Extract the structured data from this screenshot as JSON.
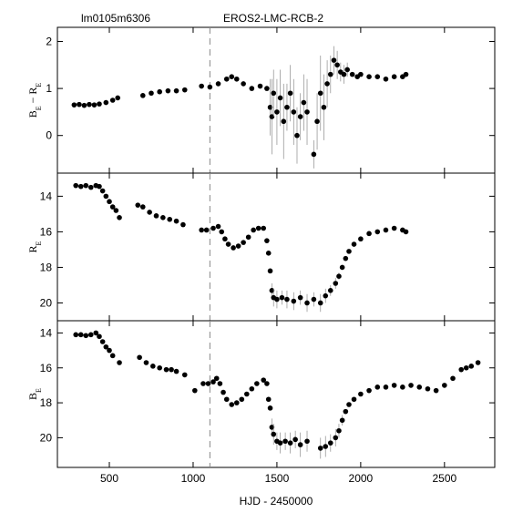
{
  "chart_data": [
    {
      "type": "scatter",
      "subtitle": "lm0105m6306",
      "title": "EROS2-LMC-RCB-2",
      "y_label": [
        {
          "text": "B",
          "sub": false
        },
        {
          "text": "E",
          "sub": true
        },
        {
          "text": " − ",
          "sub": false
        },
        {
          "text": "R",
          "sub": false
        },
        {
          "text": "E",
          "sub": true
        }
      ],
      "xlim": [
        190,
        2800
      ],
      "ylim": [
        -0.8,
        2.3
      ],
      "xticks": [
        500,
        1000,
        1500,
        2000,
        2500
      ],
      "yticks": [
        0,
        1,
        2
      ],
      "reference_x": 1100,
      "color": "#000000",
      "error_color": "#999999",
      "x": [
        290,
        320,
        350,
        380,
        410,
        440,
        480,
        520,
        550,
        700,
        750,
        800,
        850,
        900,
        950,
        1050,
        1100,
        1150,
        1200,
        1230,
        1260,
        1300,
        1350,
        1400,
        1440,
        1460,
        1470,
        1480,
        1500,
        1520,
        1540,
        1560,
        1580,
        1600,
        1620,
        1640,
        1660,
        1680,
        1720,
        1740,
        1760,
        1780,
        1800,
        1820,
        1840,
        1860,
        1880,
        1900,
        1920,
        1950,
        1980,
        2000,
        2050,
        2100,
        2150,
        2200,
        2250,
        2270
      ],
      "values": [
        0.65,
        0.66,
        0.64,
        0.66,
        0.65,
        0.67,
        0.7,
        0.75,
        0.8,
        0.85,
        0.9,
        0.93,
        0.95,
        0.95,
        0.97,
        1.05,
        1.03,
        1.1,
        1.2,
        1.25,
        1.2,
        1.1,
        1.0,
        1.05,
        1.0,
        0.6,
        0.4,
        0.9,
        0.5,
        0.8,
        0.3,
        0.6,
        0.9,
        0.5,
        0.0,
        0.4,
        0.7,
        0.5,
        -0.4,
        0.3,
        0.9,
        0.6,
        1.1,
        1.3,
        1.6,
        1.5,
        1.35,
        1.3,
        1.4,
        1.3,
        1.25,
        1.3,
        1.25,
        1.25,
        1.2,
        1.25,
        1.25,
        1.3
      ],
      "errors": [
        null,
        null,
        null,
        null,
        null,
        null,
        null,
        null,
        null,
        null,
        null,
        null,
        null,
        null,
        null,
        null,
        null,
        null,
        null,
        null,
        null,
        null,
        null,
        null,
        null,
        0.6,
        0.8,
        0.5,
        0.7,
        0.6,
        0.8,
        0.5,
        0.6,
        0.7,
        0.6,
        0.5,
        0.6,
        0.7,
        0.3,
        0.6,
        0.8,
        0.7,
        0.5,
        0.4,
        0.3,
        0.3,
        0.2,
        0.2,
        0.15,
        null,
        null,
        null,
        null,
        null,
        null,
        null,
        null,
        null
      ]
    },
    {
      "type": "scatter",
      "y_label": [
        {
          "text": "R",
          "sub": false
        },
        {
          "text": "E",
          "sub": true
        }
      ],
      "xlim": [
        190,
        2800
      ],
      "ylim": [
        21,
        12.7
      ],
      "xticks": [
        500,
        1000,
        1500,
        2000,
        2500
      ],
      "yticks": [
        14,
        16,
        18,
        20
      ],
      "reference_x": 1100,
      "color": "#000000",
      "error_color": "#999999",
      "x": [
        300,
        330,
        360,
        390,
        420,
        440,
        460,
        480,
        500,
        520,
        540,
        560,
        670,
        700,
        740,
        780,
        820,
        860,
        900,
        940,
        1050,
        1080,
        1120,
        1150,
        1170,
        1190,
        1210,
        1240,
        1270,
        1300,
        1330,
        1360,
        1390,
        1420,
        1440,
        1450,
        1460,
        1470,
        1480,
        1500,
        1530,
        1560,
        1600,
        1640,
        1680,
        1720,
        1760,
        1790,
        1820,
        1850,
        1870,
        1890,
        1910,
        1930,
        1960,
        2000,
        2050,
        2100,
        2150,
        2200,
        2250,
        2270
      ],
      "values": [
        13.4,
        13.45,
        13.4,
        13.5,
        13.4,
        13.45,
        13.7,
        14.0,
        14.3,
        14.6,
        14.8,
        15.2,
        14.5,
        14.6,
        14.9,
        15.1,
        15.2,
        15.3,
        15.4,
        15.6,
        15.9,
        15.9,
        15.8,
        15.7,
        16.0,
        16.4,
        16.7,
        16.9,
        16.8,
        16.6,
        16.3,
        15.9,
        15.8,
        15.8,
        16.5,
        17.2,
        18.2,
        19.3,
        19.7,
        19.8,
        19.7,
        19.8,
        19.9,
        19.7,
        20.0,
        19.8,
        20.0,
        19.6,
        19.3,
        18.9,
        18.5,
        18.0,
        17.5,
        17.1,
        16.7,
        16.4,
        16.1,
        16.0,
        15.9,
        15.8,
        15.9,
        16.0
      ],
      "errors": [
        null,
        null,
        null,
        null,
        null,
        null,
        null,
        null,
        null,
        null,
        null,
        null,
        null,
        null,
        null,
        null,
        null,
        null,
        null,
        null,
        null,
        null,
        null,
        null,
        null,
        null,
        null,
        null,
        null,
        null,
        null,
        null,
        null,
        null,
        null,
        null,
        null,
        0.4,
        0.5,
        0.5,
        0.4,
        0.5,
        0.5,
        0.4,
        0.5,
        0.4,
        0.5,
        0.4,
        0.3,
        0.3,
        0.2,
        null,
        null,
        null,
        null,
        null,
        null,
        null,
        null,
        null,
        null,
        null
      ]
    },
    {
      "type": "scatter",
      "x_label": "HJD - 2450000",
      "y_label": [
        {
          "text": "B",
          "sub": false
        },
        {
          "text": "E",
          "sub": true
        }
      ],
      "xlim": [
        190,
        2800
      ],
      "ylim": [
        21.7,
        13.3
      ],
      "xticks": [
        500,
        1000,
        1500,
        2000,
        2500
      ],
      "yticks": [
        14,
        16,
        18,
        20
      ],
      "reference_x": 1100,
      "color": "#000000",
      "error_color": "#999999",
      "x": [
        300,
        330,
        360,
        390,
        420,
        440,
        460,
        480,
        500,
        520,
        560,
        680,
        720,
        760,
        800,
        840,
        870,
        900,
        950,
        1010,
        1060,
        1090,
        1120,
        1140,
        1160,
        1180,
        1200,
        1230,
        1260,
        1290,
        1320,
        1350,
        1380,
        1420,
        1440,
        1450,
        1460,
        1470,
        1480,
        1500,
        1520,
        1550,
        1580,
        1610,
        1640,
        1680,
        1760,
        1790,
        1820,
        1850,
        1870,
        1890,
        1910,
        1930,
        1960,
        2000,
        2050,
        2100,
        2150,
        2200,
        2250,
        2300,
        2350,
        2400,
        2450,
        2500,
        2550,
        2600,
        2630,
        2660,
        2700
      ],
      "values": [
        14.1,
        14.1,
        14.15,
        14.1,
        14.0,
        14.2,
        14.5,
        14.8,
        15.0,
        15.3,
        15.7,
        15.4,
        15.7,
        15.9,
        16.0,
        16.1,
        16.1,
        16.2,
        16.4,
        17.3,
        16.9,
        16.9,
        16.8,
        16.6,
        16.9,
        17.4,
        17.8,
        18.1,
        18.0,
        17.8,
        17.5,
        17.2,
        16.9,
        16.7,
        16.9,
        17.8,
        18.3,
        19.4,
        19.8,
        20.2,
        20.3,
        20.2,
        20.3,
        20.1,
        20.4,
        20.2,
        20.6,
        20.5,
        20.3,
        20.0,
        19.6,
        19.0,
        18.5,
        18.1,
        17.8,
        17.5,
        17.3,
        17.1,
        17.1,
        17.0,
        17.1,
        17.0,
        17.1,
        17.2,
        17.3,
        17.0,
        16.6,
        16.1,
        16.0,
        15.9,
        15.7
      ],
      "errors": [
        null,
        null,
        null,
        null,
        null,
        null,
        null,
        null,
        null,
        null,
        null,
        null,
        null,
        null,
        null,
        null,
        null,
        null,
        null,
        null,
        null,
        null,
        null,
        null,
        null,
        null,
        null,
        null,
        null,
        null,
        null,
        null,
        null,
        null,
        null,
        null,
        null,
        0.5,
        0.6,
        0.5,
        0.6,
        0.5,
        0.6,
        0.5,
        0.7,
        0.6,
        0.6,
        0.6,
        0.5,
        0.5,
        0.4,
        0.3,
        null,
        null,
        null,
        null,
        null,
        null,
        null,
        null,
        null,
        null,
        null,
        null,
        null,
        null,
        null,
        null,
        null,
        null,
        null
      ]
    }
  ]
}
